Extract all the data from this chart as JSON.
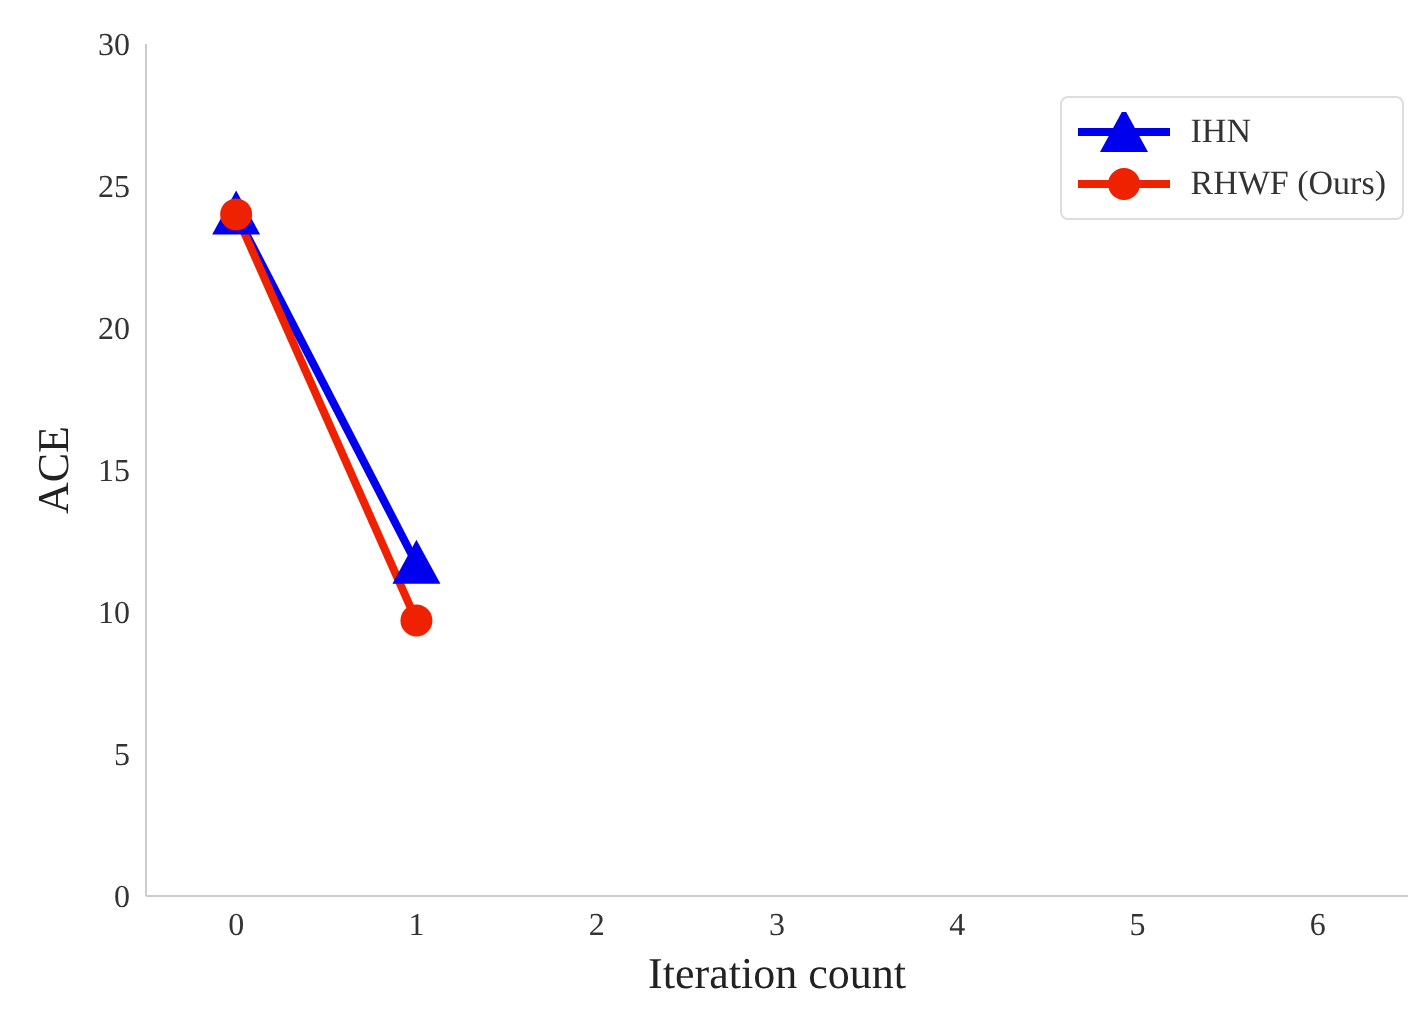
{
  "chart_data": {
    "type": "line",
    "xlabel": "Iteration count",
    "ylabel": "ACE",
    "x": [
      0,
      1
    ],
    "series": [
      {
        "name": "IHN",
        "color": "#0000ee",
        "values": [
          24,
          11.7
        ],
        "marker": "triangle"
      },
      {
        "name": "RHWF (Ours)",
        "color": "#ee2200",
        "values": [
          24,
          9.7
        ],
        "marker": "circle"
      }
    ],
    "xlim": [
      -0.5,
      6.5
    ],
    "xticks": [
      0,
      1,
      2,
      3,
      4,
      5,
      6
    ],
    "ylim": [
      0,
      30
    ],
    "yticks": [
      0,
      5,
      10,
      15,
      20,
      25,
      30
    ],
    "grid": false,
    "legend": "top right",
    "line_style": "solid"
  }
}
